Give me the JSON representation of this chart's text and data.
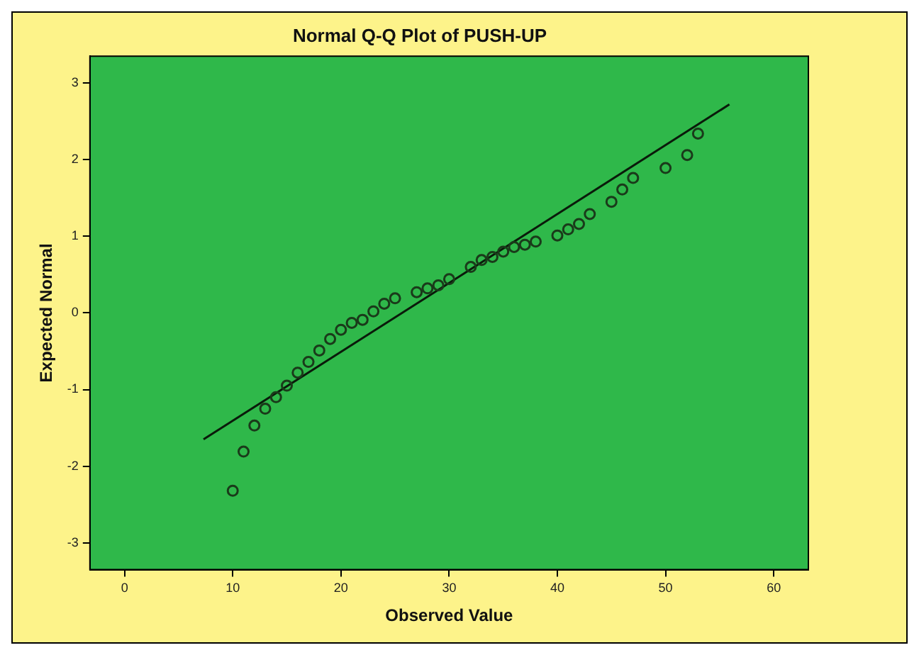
{
  "chart_data": {
    "type": "scatter",
    "title": "Normal Q-Q Plot of PUSH-UP",
    "xlabel": "Observed Value",
    "ylabel": "Expected Normal",
    "xlim": [
      -3.2,
      63.2
    ],
    "ylim": [
      -3.35,
      3.35
    ],
    "xticks": [
      0,
      10,
      20,
      30,
      40,
      50,
      60
    ],
    "yticks": [
      -3,
      -2,
      -1,
      0,
      1,
      2,
      3
    ],
    "grid": false,
    "legend": false,
    "marker": "circle",
    "series": [
      {
        "color": "#1a3a1a",
        "x": [
          10,
          11,
          12,
          13,
          14,
          15,
          16,
          17,
          18,
          19,
          20,
          21,
          22,
          23,
          24,
          25,
          27,
          28,
          29,
          30,
          32,
          33,
          34,
          35,
          36,
          37,
          38,
          40,
          41,
          42,
          43,
          45,
          46,
          47,
          50,
          52,
          53
        ],
        "values": [
          -2.32,
          -1.81,
          -1.47,
          -1.25,
          -1.1,
          -0.95,
          -0.78,
          -0.64,
          -0.49,
          -0.34,
          -0.22,
          -0.13,
          -0.09,
          0.02,
          0.12,
          0.19,
          0.27,
          0.32,
          0.36,
          0.44,
          0.6,
          0.69,
          0.73,
          0.8,
          0.86,
          0.89,
          0.93,
          1.01,
          1.09,
          1.16,
          1.29,
          1.45,
          1.61,
          1.76,
          1.89,
          2.06,
          2.34
        ]
      },
      {
        "type": "line",
        "color": "#0a1a0a",
        "marker": "none",
        "line_style": "solid",
        "x": [
          7.3,
          55.9
        ],
        "values": [
          -1.65,
          2.72
        ]
      }
    ]
  }
}
